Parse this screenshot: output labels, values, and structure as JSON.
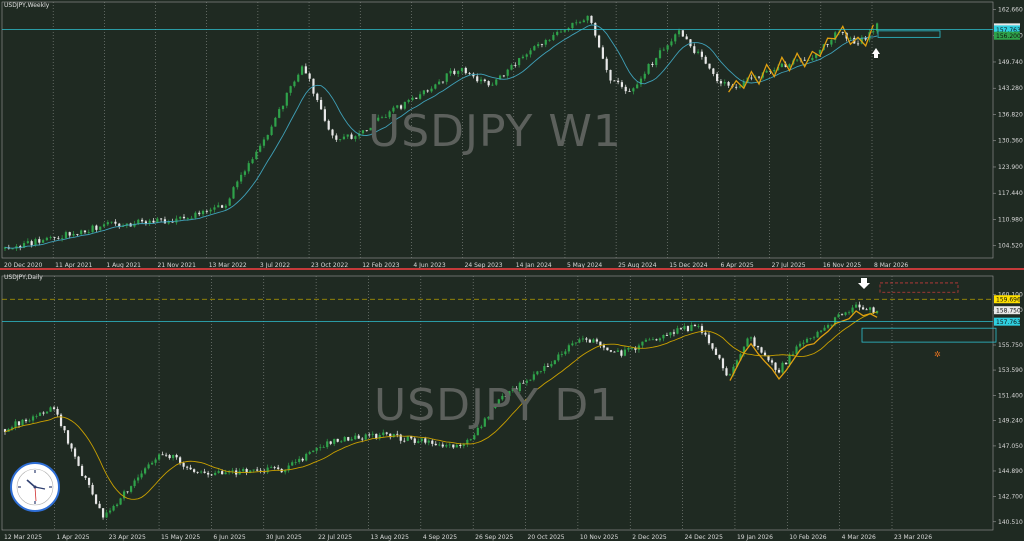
{
  "chart_data": [
    {
      "type": "candlestick",
      "title": "USDJPY,Weekly",
      "watermark": "USDJPY W1",
      "x_ticks": [
        "20 Dec 2020",
        "11 Apr 2021",
        "1 Aug 2021",
        "21 Nov 2021",
        "13 Mar 2022",
        "3 Jul 2022",
        "23 Oct 2022",
        "12 Feb 2023",
        "4 Jun 2023",
        "24 Sep 2023",
        "14 Jan 2024",
        "5 May 2024",
        "25 Aug 2024",
        "15 Dec 2024",
        "6 Apr 2025",
        "27 Jul 2025",
        "16 Nov 2025",
        "8 Mar 2026"
      ],
      "y_ticks": [
        "162.660",
        "156.200",
        "149.740",
        "143.280",
        "136.820",
        "130.360",
        "123.900",
        "117.440",
        "110.980",
        "104.520"
      ],
      "ylim": [
        101.5,
        164.5
      ],
      "price_labels": [
        "158.259",
        "157.763",
        "156.200"
      ],
      "horizontal_level": 157.763,
      "trend_path": [
        {
          "x": 0.0,
          "y": 103.8
        },
        {
          "x": 0.1,
          "y": 109.5
        },
        {
          "x": 0.17,
          "y": 110.8
        },
        {
          "x": 0.22,
          "y": 114.0
        },
        {
          "x": 0.27,
          "y": 134.0
        },
        {
          "x": 0.3,
          "y": 149.5
        },
        {
          "x": 0.33,
          "y": 131.0
        },
        {
          "x": 0.35,
          "y": 131.2
        },
        {
          "x": 0.4,
          "y": 139.0
        },
        {
          "x": 0.46,
          "y": 148.5
        },
        {
          "x": 0.49,
          "y": 143.3
        },
        {
          "x": 0.51,
          "y": 148.5
        },
        {
          "x": 0.56,
          "y": 157.5
        },
        {
          "x": 0.59,
          "y": 161.0
        },
        {
          "x": 0.61,
          "y": 146.0
        },
        {
          "x": 0.63,
          "y": 142.0
        },
        {
          "x": 0.66,
          "y": 152.0
        },
        {
          "x": 0.68,
          "y": 157.0
        },
        {
          "x": 0.71,
          "y": 148.5
        },
        {
          "x": 0.72,
          "y": 145.0
        },
        {
          "x": 0.74,
          "y": 144.0
        },
        {
          "x": 0.78,
          "y": 149.0
        },
        {
          "x": 0.81,
          "y": 150.0
        },
        {
          "x": 0.84,
          "y": 157.0
        },
        {
          "x": 0.86,
          "y": 153.8
        },
        {
          "x": 0.88,
          "y": 159.0
        }
      ],
      "series": [
        {
          "name": "",
          "kind": "price",
          "color": "#2fa24a"
        },
        {
          "name": "",
          "kind": "moving-average",
          "color": "#3fa0b8"
        },
        {
          "name": "",
          "kind": "zigzag",
          "color": "#e0a010"
        }
      ]
    },
    {
      "type": "candlestick",
      "title": "USDJPY,Daily",
      "watermark": "USDJPY D1",
      "x_ticks": [
        "12 Mar 2025",
        "1 Apr 2025",
        "23 Apr 2025",
        "15 May 2025",
        "6 Jun 2025",
        "30 Jun 2025",
        "22 Jul 2025",
        "13 Aug 2025",
        "4 Sep 2025",
        "26 Sep 2025",
        "20 Oct 2025",
        "10 Nov 2025",
        "2 Dec 2025",
        "24 Dec 2025",
        "19 Jan 2026",
        "10 Feb 2026",
        "4 Mar 2026",
        "23 Mar 2026"
      ],
      "y_ticks": [
        "160.100",
        "158.750",
        "155.750",
        "153.590",
        "151.400",
        "149.240",
        "147.050",
        "144.890",
        "142.700",
        "140.510"
      ],
      "ylim": [
        139.8,
        161.7
      ],
      "price_labels": [
        "159.696",
        "158.750",
        "157.763"
      ],
      "horizontal_levels": [
        157.763,
        159.696
      ],
      "trend_path": [
        {
          "x": 0.0,
          "y": 148.5
        },
        {
          "x": 0.05,
          "y": 150.5
        },
        {
          "x": 0.07,
          "y": 146.0
        },
        {
          "x": 0.1,
          "y": 140.8
        },
        {
          "x": 0.13,
          "y": 144.0
        },
        {
          "x": 0.16,
          "y": 146.5
        },
        {
          "x": 0.2,
          "y": 144.5
        },
        {
          "x": 0.24,
          "y": 144.8
        },
        {
          "x": 0.28,
          "y": 145.0
        },
        {
          "x": 0.33,
          "y": 147.5
        },
        {
          "x": 0.38,
          "y": 148.0
        },
        {
          "x": 0.42,
          "y": 147.5
        },
        {
          "x": 0.46,
          "y": 146.8
        },
        {
          "x": 0.5,
          "y": 151.0
        },
        {
          "x": 0.54,
          "y": 153.5
        },
        {
          "x": 0.58,
          "y": 156.5
        },
        {
          "x": 0.62,
          "y": 155.0
        },
        {
          "x": 0.66,
          "y": 156.5
        },
        {
          "x": 0.7,
          "y": 157.5
        },
        {
          "x": 0.73,
          "y": 153.0
        },
        {
          "x": 0.75,
          "y": 156.5
        },
        {
          "x": 0.78,
          "y": 153.5
        },
        {
          "x": 0.8,
          "y": 155.5
        },
        {
          "x": 0.83,
          "y": 157.5
        },
        {
          "x": 0.86,
          "y": 159.2
        },
        {
          "x": 0.88,
          "y": 158.6
        }
      ],
      "series": [
        {
          "name": "",
          "kind": "price",
          "color": "#2fa24a"
        },
        {
          "name": "",
          "kind": "moving-average",
          "color": "#c9a000"
        },
        {
          "name": "",
          "kind": "zigzag",
          "color": "#e0a010"
        }
      ]
    }
  ]
}
